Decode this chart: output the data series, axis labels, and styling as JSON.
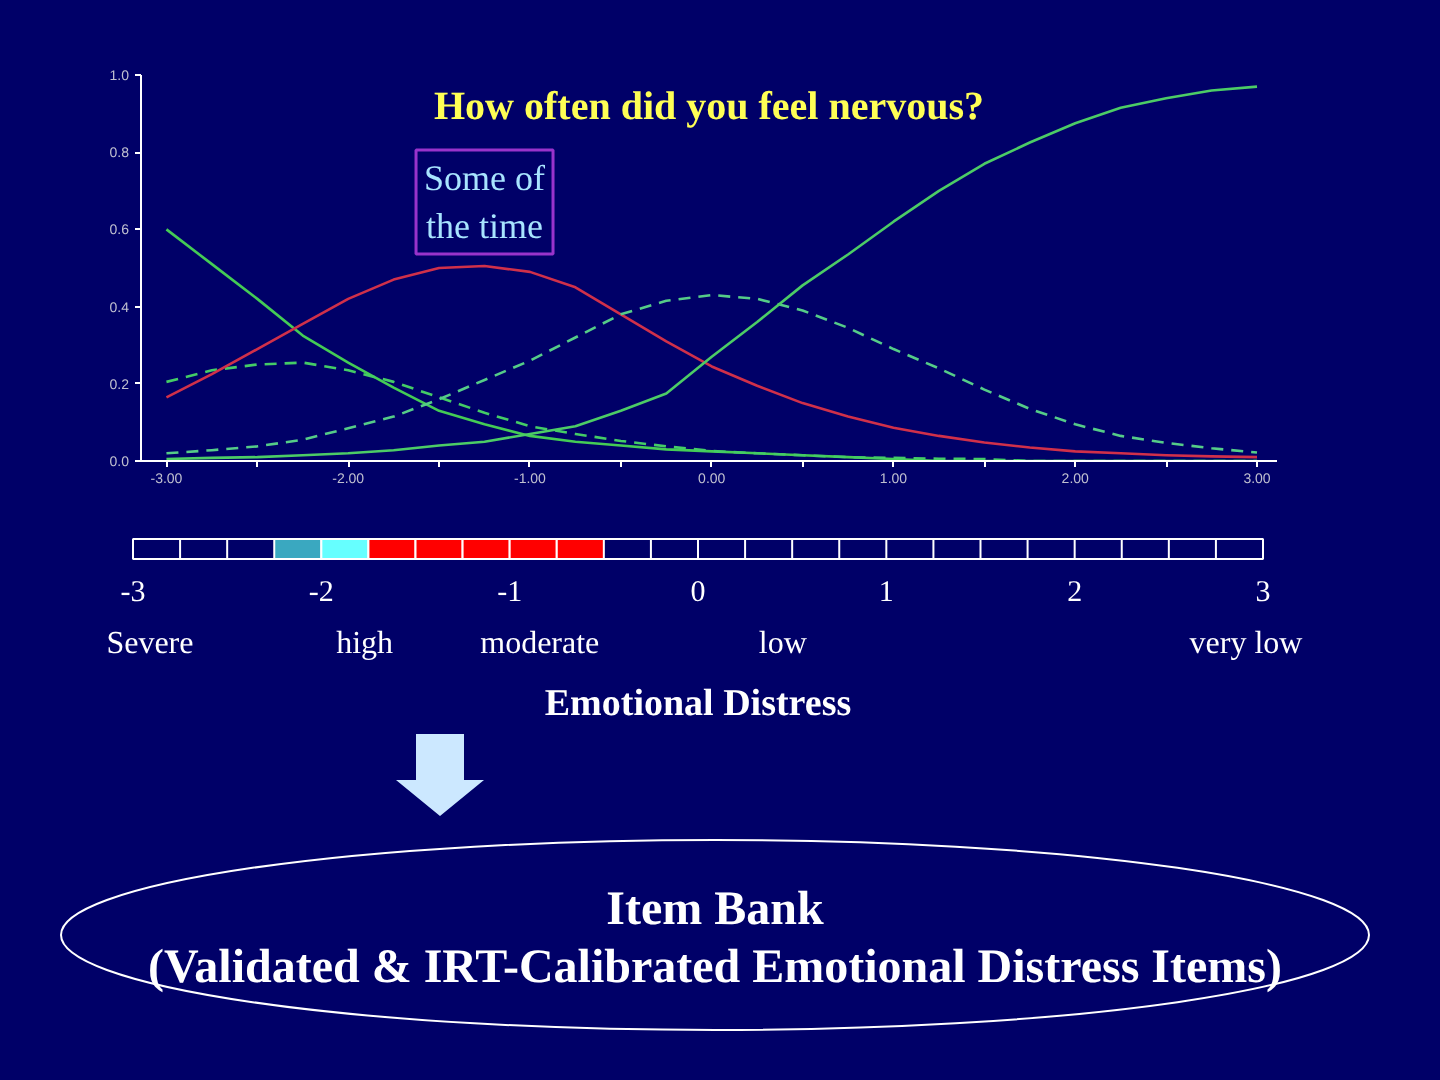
{
  "chart_data": [
    {
      "type": "line",
      "title": "How often did you feel nervous?",
      "x": [
        -3,
        -2.75,
        -2.5,
        -2.25,
        -2,
        -1.75,
        -1.5,
        -1.25,
        -1,
        -0.75,
        -0.5,
        -0.25,
        0,
        0.25,
        0.5,
        0.75,
        1,
        1.25,
        1.5,
        1.75,
        2,
        2.25,
        2.5,
        2.75,
        3
      ],
      "series": [
        {
          "color": "#44cc55",
          "line_style": "solid",
          "values": [
            0.6,
            0.51,
            0.42,
            0.325,
            0.255,
            0.19,
            0.13,
            0.095,
            0.065,
            0.05,
            0.04,
            0.03,
            0.025,
            0.02,
            0.015,
            0.01,
            0.005,
            0,
            0,
            0,
            0,
            0,
            0,
            0,
            0
          ]
        },
        {
          "color": "#44cc66",
          "line_style": "dashed",
          "values": [
            0.205,
            0.235,
            0.25,
            0.255,
            0.235,
            0.205,
            0.165,
            0.125,
            0.09,
            0.07,
            0.052,
            0.038,
            0.026,
            0.02,
            0.015,
            0.01,
            0.008,
            0.006,
            0.005,
            0,
            0,
            0,
            0,
            0,
            0
          ]
        },
        {
          "name": "Some of the time",
          "color": "#d0304a",
          "line_style": "solid",
          "values": [
            0.165,
            0.225,
            0.29,
            0.355,
            0.42,
            0.47,
            0.5,
            0.505,
            0.49,
            0.45,
            0.38,
            0.31,
            0.245,
            0.195,
            0.15,
            0.115,
            0.086,
            0.065,
            0.048,
            0.035,
            0.025,
            0.02,
            0.015,
            0.012,
            0.01
          ]
        },
        {
          "color": "#55cc88",
          "line_style": "dashed",
          "values": [
            0.02,
            0.028,
            0.038,
            0.055,
            0.085,
            0.115,
            0.16,
            0.21,
            0.26,
            0.32,
            0.38,
            0.415,
            0.43,
            0.42,
            0.39,
            0.345,
            0.29,
            0.24,
            0.185,
            0.135,
            0.095,
            0.065,
            0.047,
            0.033,
            0.022
          ]
        },
        {
          "color": "#4ccc66",
          "line_style": "solid",
          "values": [
            0.005,
            0.008,
            0.01,
            0.015,
            0.02,
            0.028,
            0.04,
            0.05,
            0.07,
            0.09,
            0.13,
            0.175,
            0.27,
            0.36,
            0.455,
            0.535,
            0.62,
            0.7,
            0.77,
            0.825,
            0.875,
            0.915,
            0.94,
            0.96,
            0.97
          ]
        }
      ],
      "xlim": [
        -3.14,
        3.11
      ],
      "ylim": [
        0,
        1
      ],
      "xticks": [
        {
          "value": -3,
          "label": "-3.00"
        },
        {
          "value": -2.5,
          "label": null
        },
        {
          "value": -2,
          "label": "-2.00"
        },
        {
          "value": -1.5,
          "label": null
        },
        {
          "value": -1,
          "label": "-1.00"
        },
        {
          "value": -0.5,
          "label": null
        },
        {
          "value": 0,
          "label": "0.00"
        },
        {
          "value": 0.5,
          "label": null
        },
        {
          "value": 1,
          "label": "1.00"
        },
        {
          "value": 1.5,
          "label": null
        },
        {
          "value": 2,
          "label": "2.00"
        },
        {
          "value": 2.5,
          "label": null
        },
        {
          "value": 3,
          "label": "3.00"
        }
      ],
      "yticks": [
        {
          "value": 0,
          "label": "0.0"
        },
        {
          "value": 0.2,
          "label": "0.2"
        },
        {
          "value": 0.4,
          "label": "0.4"
        },
        {
          "value": 0.6,
          "label": "0.6"
        },
        {
          "value": 0.8,
          "label": "0.8"
        },
        {
          "value": 1,
          "label": "1.0"
        }
      ]
    },
    {
      "type": "bar",
      "orientation": "horizontal",
      "categories": [
        null
      ],
      "series": [
        {
          "color": "#3aa8c0",
          "base": [
            -2.25
          ],
          "values": [
            0.25
          ]
        },
        {
          "color": "#66ffff",
          "base": [
            -2
          ],
          "values": [
            0.25
          ]
        },
        {
          "color": "#ff0000",
          "base": [
            -1.75
          ],
          "values": [
            0.25
          ]
        },
        {
          "color": "#ff0000",
          "base": [
            -1.5
          ],
          "values": [
            0.25
          ]
        },
        {
          "color": "#ff0000",
          "base": [
            -1.25
          ],
          "values": [
            0.25
          ]
        },
        {
          "color": "#ff0000",
          "base": [
            -1
          ],
          "values": [
            0.25
          ]
        },
        {
          "color": "#ff0000",
          "base": [
            -0.75
          ],
          "values": [
            0.25
          ]
        }
      ],
      "ref_lines": [
        {
          "axis": "x",
          "value": -2.75,
          "color": "#ffffff"
        },
        {
          "axis": "x",
          "value": -2.5,
          "color": "#ffffff"
        },
        {
          "axis": "x",
          "value": -0.25,
          "color": "#ffffff"
        },
        {
          "axis": "x",
          "value": 0,
          "color": "#ffffff"
        },
        {
          "axis": "x",
          "value": 0.25,
          "color": "#ffffff"
        },
        {
          "axis": "x",
          "value": 0.5,
          "color": "#ffffff"
        },
        {
          "axis": "x",
          "value": 0.75,
          "color": "#ffffff"
        },
        {
          "axis": "x",
          "value": 1,
          "color": "#ffffff"
        },
        {
          "axis": "x",
          "value": 1.25,
          "color": "#ffffff"
        },
        {
          "axis": "x",
          "value": 1.5,
          "color": "#ffffff"
        },
        {
          "axis": "x",
          "value": 1.75,
          "color": "#ffffff"
        },
        {
          "axis": "x",
          "value": 2,
          "color": "#ffffff"
        },
        {
          "axis": "x",
          "value": 2.25,
          "color": "#ffffff"
        },
        {
          "axis": "x",
          "value": 2.5,
          "color": "#ffffff"
        },
        {
          "axis": "x",
          "value": 2.75,
          "color": "#ffffff"
        }
      ],
      "xlabel": "Emotional Distress",
      "xlim": [
        -3,
        3
      ],
      "xticks": [
        -3,
        -2,
        -1,
        0,
        1,
        2,
        3
      ],
      "tick_labels": "x",
      "annotations": [
        "Severe",
        "high",
        "moderate",
        "low",
        "very low"
      ]
    },
    {
      "type": "other",
      "annotations": [
        "Item Bank",
        "(Validated & IRT-Calibrated Emotional Distress Items)"
      ]
    }
  ]
}
